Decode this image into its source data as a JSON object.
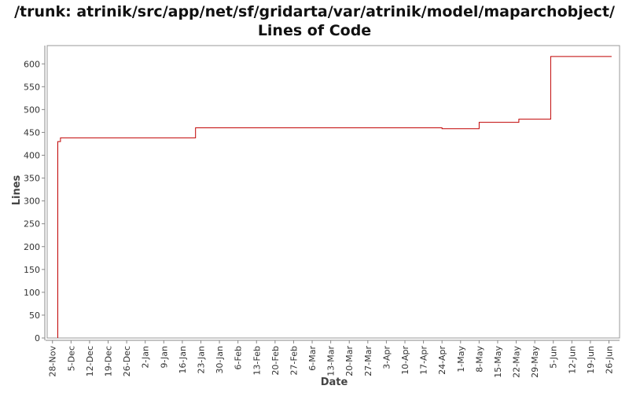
{
  "title": {
    "line1": "/trunk: atrinik/src/app/net/sf/gridarta/var/atrinik/model/maparchobject/",
    "line2": "Lines of Code"
  },
  "colors": {
    "series": "#c00000",
    "axis": "#888888",
    "plot_border": "#999999",
    "background": "#ffffff"
  },
  "chart_data": {
    "type": "line",
    "title": "/trunk: atrinik/src/app/net/sf/gridarta/var/atrinik/model/maparchobject/ Lines of Code",
    "xlabel": "Date",
    "ylabel": "Lines",
    "ylim": [
      0,
      640
    ],
    "yticks": [
      0,
      50,
      100,
      150,
      200,
      250,
      300,
      350,
      400,
      450,
      500,
      550,
      600
    ],
    "xlim": [
      "2008-11-26",
      "2009-06-30"
    ],
    "xticks": [
      "2008-11-28",
      "2008-12-05",
      "2008-12-12",
      "2008-12-19",
      "2008-12-26",
      "2009-01-02",
      "2009-01-09",
      "2009-01-16",
      "2009-01-23",
      "2009-01-30",
      "2009-02-06",
      "2009-02-13",
      "2009-02-20",
      "2009-02-27",
      "2009-03-06",
      "2009-03-13",
      "2009-03-20",
      "2009-03-27",
      "2009-04-03",
      "2009-04-10",
      "2009-04-17",
      "2009-04-24",
      "2009-05-01",
      "2009-05-08",
      "2009-05-15",
      "2009-05-22",
      "2009-05-29",
      "2009-06-05",
      "2009-06-12",
      "2009-06-19",
      "2009-06-26"
    ],
    "xtick_labels": [
      "28-Nov",
      "5-Dec",
      "12-Dec",
      "19-Dec",
      "26-Dec",
      "2-Jan",
      "9-Jan",
      "16-Jan",
      "23-Jan",
      "30-Jan",
      "6-Feb",
      "13-Feb",
      "20-Feb",
      "27-Feb",
      "6-Mar",
      "13-Mar",
      "20-Mar",
      "27-Mar",
      "3-Apr",
      "10-Apr",
      "17-Apr",
      "24-Apr",
      "1-May",
      "8-May",
      "15-May",
      "22-May",
      "29-May",
      "5-Jun",
      "12-Jun",
      "19-Jun",
      "26-Jun"
    ],
    "grid": false,
    "step": true,
    "series": [
      {
        "color": "#c00000",
        "points": [
          {
            "x": "2008-11-30",
            "y": 0
          },
          {
            "x": "2008-11-30",
            "y": 430
          },
          {
            "x": "2008-12-01",
            "y": 438
          },
          {
            "x": "2009-01-21",
            "y": 460
          },
          {
            "x": "2009-04-24",
            "y": 458
          },
          {
            "x": "2009-05-08",
            "y": 472
          },
          {
            "x": "2009-05-23",
            "y": 479
          },
          {
            "x": "2009-06-04",
            "y": 616
          },
          {
            "x": "2009-06-27",
            "y": 616
          }
        ]
      }
    ]
  }
}
